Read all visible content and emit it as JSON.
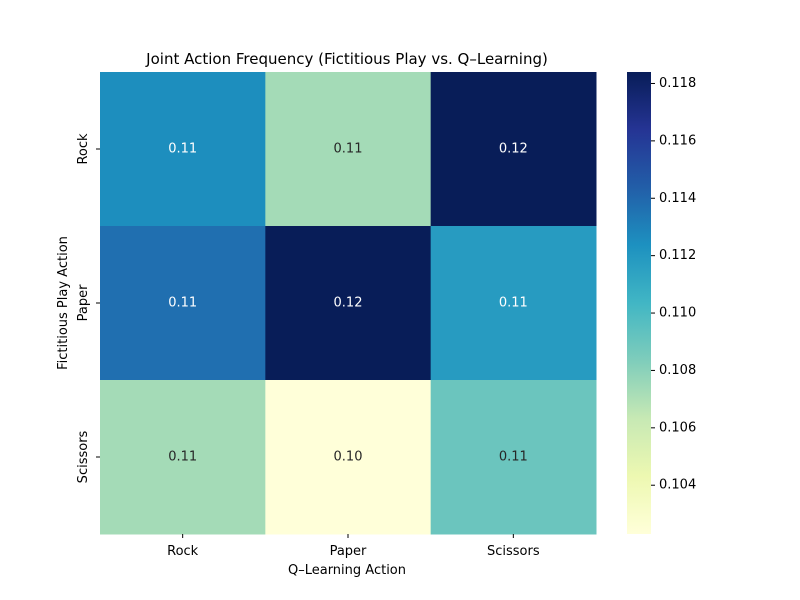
{
  "chart_data": {
    "type": "heatmap",
    "title": "Joint Action Frequency (Fictitious Play vs. Q–Learning)",
    "xlabel": "Q–Learning Action",
    "ylabel": "Fictitious Play Action",
    "x_categories": [
      "Rock",
      "Paper",
      "Scissors"
    ],
    "y_categories": [
      "Rock",
      "Paper",
      "Scissors"
    ],
    "values": [
      [
        0.1125,
        0.1073,
        0.1184
      ],
      [
        0.1137,
        0.1184,
        0.1118
      ],
      [
        0.1073,
        0.1023,
        0.109
      ]
    ],
    "annotations": [
      [
        "0.11",
        "0.11",
        "0.12"
      ],
      [
        "0.11",
        "0.12",
        "0.11"
      ],
      [
        "0.11",
        "0.10",
        "0.11"
      ]
    ],
    "colormap": "YlGnBu",
    "colorbar": {
      "range": [
        0.1023,
        0.1184
      ],
      "ticks": [
        0.104,
        0.106,
        0.108,
        0.11,
        0.112,
        0.114,
        0.116,
        0.118
      ],
      "tick_labels": [
        "0.104",
        "0.106",
        "0.108",
        "0.110",
        "0.112",
        "0.114",
        "0.116",
        "0.118"
      ]
    },
    "grid": false
  }
}
